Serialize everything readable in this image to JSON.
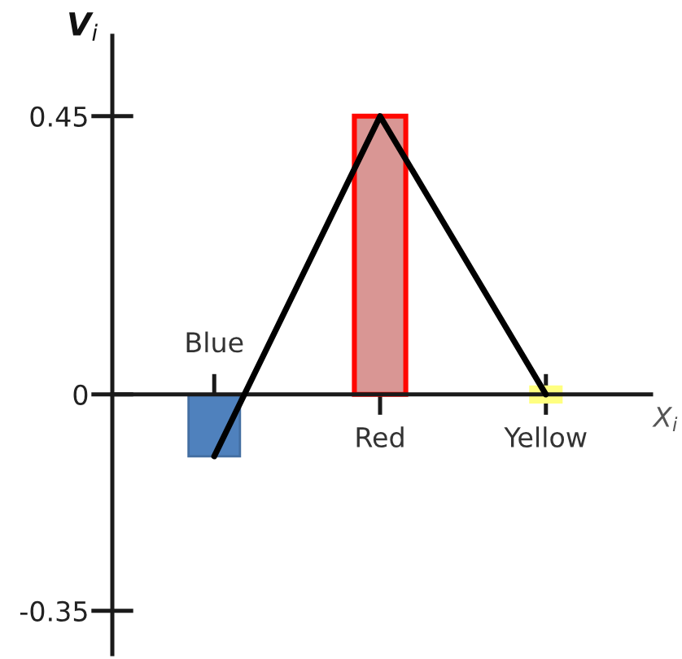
{
  "chart_data": {
    "type": "bar",
    "xlabel": "X$_{i}$",
    "ylabel": "V$_{i}$",
    "categories": [
      "Blue",
      "Red",
      "Yellow"
    ],
    "series": [
      {
        "colors": [
          "#4f81bd",
          "#d99694",
          "#ffff80"
        ],
        "values": [
          -0.1,
          0.45,
          0
        ]
      },
      {
        "type": "line",
        "color": "#000000",
        "values": [
          -0.1,
          0.45,
          0
        ]
      }
    ],
    "ylim": [
      -0.42,
      0.58
    ],
    "yticks": [
      -0.35,
      0,
      0.45
    ]
  }
}
